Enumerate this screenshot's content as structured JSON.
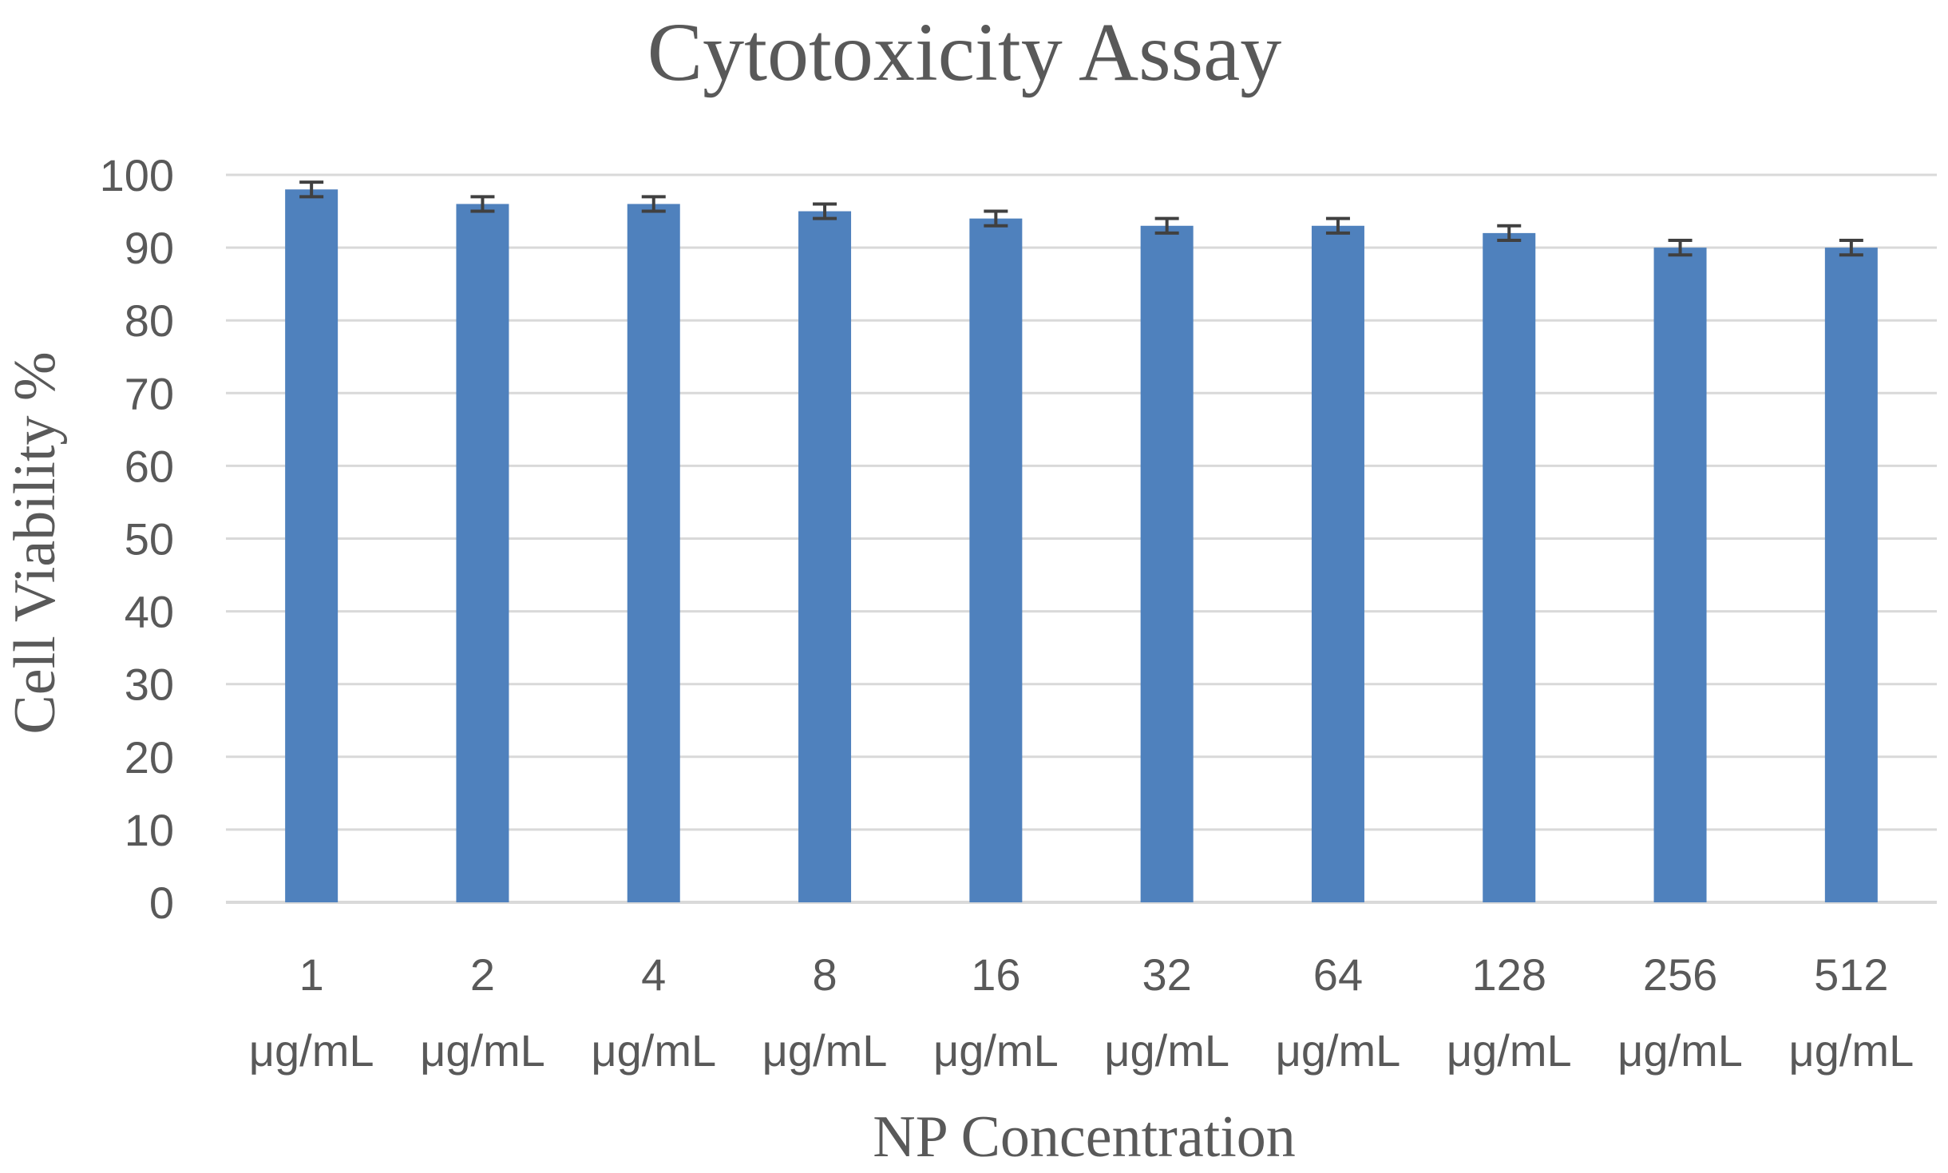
{
  "chart_data": {
    "type": "bar",
    "title": "Cytotoxicity Assay",
    "xlabel": "NP Concentration",
    "ylabel": "Cell Viability %",
    "categories": [
      [
        "1",
        "μg/mL"
      ],
      [
        "2",
        "μg/mL"
      ],
      [
        "4",
        "μg/mL"
      ],
      [
        "8",
        "μg/mL"
      ],
      [
        "16",
        "μg/mL"
      ],
      [
        "32",
        "μg/mL"
      ],
      [
        "64",
        "μg/mL"
      ],
      [
        "128",
        "μg/mL"
      ],
      [
        "256",
        "μg/mL"
      ],
      [
        "512",
        "μg/mL"
      ]
    ],
    "values": [
      98,
      96,
      96,
      95,
      94,
      93,
      93,
      92,
      90,
      90
    ],
    "error": [
      1,
      1,
      1,
      1,
      1,
      1,
      1,
      1,
      1,
      1
    ],
    "ylim": [
      0,
      100
    ],
    "yticks": [
      "0",
      "10",
      "20",
      "30",
      "40",
      "50",
      "60",
      "70",
      "80",
      "90",
      "100"
    ],
    "grid": true,
    "legend": "none",
    "colors": {
      "bar": "#4f81bd",
      "error_bar": "#404040",
      "grid": "#d9d9d9",
      "text": "#595959"
    }
  }
}
